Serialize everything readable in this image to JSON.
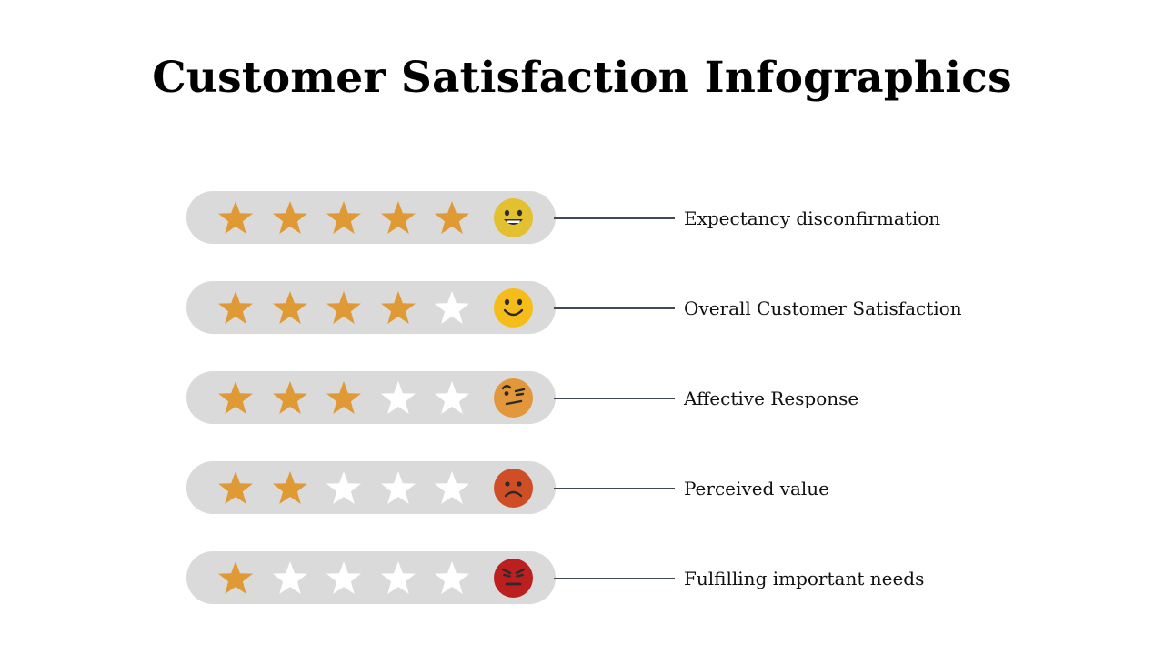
{
  "title": "Customer Satisfaction Infographics",
  "colors": {
    "pill": "#dadada",
    "star_filled": "#e09a35",
    "star_empty": "#ffffff",
    "connector": "#3d4a55"
  },
  "max_stars": 5,
  "rows": [
    {
      "label": "Expectancy disconfirmation",
      "stars": 5,
      "face": "grinning-face-icon",
      "face_color": "#e3c030"
    },
    {
      "label": "Overall Customer Satisfaction",
      "stars": 4,
      "face": "smiling-face-icon",
      "face_color": "#f6bd1a"
    },
    {
      "label": "Affective Response",
      "stars": 3,
      "face": "skeptical-face-icon",
      "face_color": "#e2973a"
    },
    {
      "label": "Perceived value",
      "stars": 2,
      "face": "frowning-face-icon",
      "face_color": "#d04e26"
    },
    {
      "label": "Fulfilling important needs",
      "stars": 1,
      "face": "angry-face-icon",
      "face_color": "#bb1f1f"
    }
  ]
}
